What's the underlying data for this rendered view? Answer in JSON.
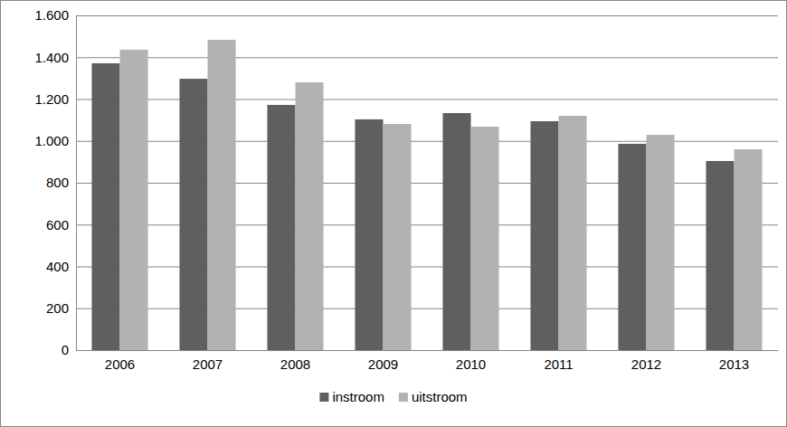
{
  "chart_data": {
    "type": "bar",
    "categories": [
      "2006",
      "2007",
      "2008",
      "2009",
      "2010",
      "2011",
      "2012",
      "2013"
    ],
    "series": [
      {
        "name": "instroom",
        "color": "#5f5f5f",
        "values": [
          1371,
          1297,
          1172,
          1103,
          1133,
          1094,
          986,
          904
        ]
      },
      {
        "name": "uitstroom",
        "color": "#b2b2b2",
        "values": [
          1436,
          1483,
          1280,
          1081,
          1068,
          1120,
          1029,
          960
        ]
      }
    ],
    "ylim": [
      0,
      1600
    ],
    "yticks": [
      0,
      200,
      400,
      600,
      800,
      {
        "value": 1000,
        "label": "1.000"
      },
      {
        "value": 1200,
        "label": "1.200"
      },
      {
        "value": 1400,
        "label": "1.400"
      },
      {
        "value": 1600,
        "label": "1.600"
      }
    ],
    "grid": true,
    "legend": "bottom"
  }
}
